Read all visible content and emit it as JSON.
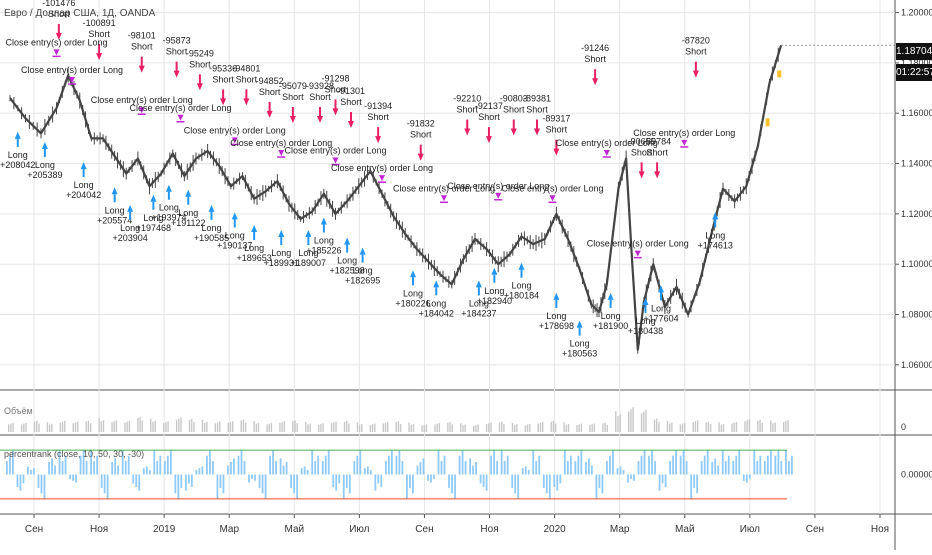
{
  "header": {
    "symbol": "Евро / Доллар США, 1Д, OANDA",
    "last_price": "1.18704",
    "countdown": "01:22:57"
  },
  "volume_pane": {
    "title": "Объём",
    "axis_label": "0"
  },
  "indicator_pane": {
    "title": "percentrank (close, 10, 50, 30, -30)",
    "axis_label": "0.00000",
    "upper_level": 30,
    "lower_level": -30,
    "colors": {
      "bars": "#90caf9",
      "upper": "#4caf50",
      "lower": "#f44336"
    }
  },
  "colors": {
    "candle": "#444444",
    "long_arrow": "#2196f3",
    "short_arrow": "#e91e63",
    "exit_marker": "#c026d3",
    "grid": "#e6e6e6",
    "volume": "#c8c8c8"
  },
  "chart_data": [
    {
      "type": "line",
      "title": "Евро / Доллар США, 1Д, OANDA",
      "x_ticks": [
        "Сен",
        "Ноя",
        "2019",
        "Мар",
        "Май",
        "Июл",
        "Сен",
        "Ноя",
        "2020",
        "Мар",
        "Май",
        "Июл",
        "Сен",
        "Ноя"
      ],
      "y_ticks": [
        "1.06000",
        "1.08000",
        "1.10000",
        "1.12000",
        "1.14000",
        "1.16000",
        "1.18000",
        "1.20000"
      ],
      "ylim": [
        1.05,
        1.205
      ],
      "xlim": [
        0,
        1
      ],
      "series": [
        {
          "values": [
            [
              0.0,
              1.166
            ],
            [
              0.02,
              1.158
            ],
            [
              0.04,
              1.152
            ],
            [
              0.06,
              1.162
            ],
            [
              0.075,
              1.175
            ],
            [
              0.09,
              1.165
            ],
            [
              0.105,
              1.15
            ],
            [
              0.12,
              1.15
            ],
            [
              0.135,
              1.143
            ],
            [
              0.15,
              1.136
            ],
            [
              0.165,
              1.142
            ],
            [
              0.18,
              1.131
            ],
            [
              0.195,
              1.136
            ],
            [
              0.21,
              1.144
            ],
            [
              0.225,
              1.135
            ],
            [
              0.24,
              1.142
            ],
            [
              0.255,
              1.145
            ],
            [
              0.27,
              1.139
            ],
            [
              0.285,
              1.131
            ],
            [
              0.3,
              1.135
            ],
            [
              0.315,
              1.126
            ],
            [
              0.33,
              1.129
            ],
            [
              0.345,
              1.133
            ],
            [
              0.36,
              1.124
            ],
            [
              0.375,
              1.118
            ],
            [
              0.39,
              1.121
            ],
            [
              0.405,
              1.128
            ],
            [
              0.42,
              1.12
            ],
            [
              0.435,
              1.125
            ],
            [
              0.45,
              1.131
            ],
            [
              0.465,
              1.137
            ],
            [
              0.48,
              1.128
            ],
            [
              0.495,
              1.119
            ],
            [
              0.51,
              1.112
            ],
            [
              0.525,
              1.106
            ],
            [
              0.54,
              1.101
            ],
            [
              0.555,
              1.096
            ],
            [
              0.57,
              1.092
            ],
            [
              0.585,
              1.102
            ],
            [
              0.6,
              1.11
            ],
            [
              0.615,
              1.106
            ],
            [
              0.63,
              1.1
            ],
            [
              0.645,
              1.104
            ],
            [
              0.66,
              1.111
            ],
            [
              0.675,
              1.108
            ],
            [
              0.69,
              1.11
            ],
            [
              0.705,
              1.12
            ],
            [
              0.72,
              1.11
            ],
            [
              0.735,
              1.098
            ],
            [
              0.75,
              1.084
            ],
            [
              0.76,
              1.081
            ],
            [
              0.77,
              1.092
            ],
            [
              0.785,
              1.13
            ],
            [
              0.795,
              1.142
            ],
            [
              0.803,
              1.1
            ],
            [
              0.81,
              1.066
            ],
            [
              0.818,
              1.085
            ],
            [
              0.83,
              1.1
            ],
            [
              0.845,
              1.083
            ],
            [
              0.86,
              1.091
            ],
            [
              0.875,
              1.08
            ],
            [
              0.89,
              1.093
            ],
            [
              0.905,
              1.112
            ],
            [
              0.92,
              1.13
            ],
            [
              0.935,
              1.125
            ],
            [
              0.95,
              1.131
            ],
            [
              0.965,
              1.147
            ],
            [
              0.98,
              1.172
            ],
            [
              0.995,
              1.187
            ]
          ]
        }
      ]
    },
    {
      "type": "bar",
      "title": "Объём",
      "values": [
        0.3,
        0.27,
        0.33,
        0.29,
        0.36,
        0.31,
        0.34,
        0.42,
        0.38,
        0.33,
        0.45,
        0.4,
        0.35,
        0.43,
        0.39,
        0.36,
        0.34,
        0.32,
        0.37,
        0.33,
        0.3,
        0.32,
        0.35,
        0.3,
        0.28,
        0.31,
        0.33,
        0.29,
        0.27,
        0.3,
        0.32,
        0.28,
        0.25,
        0.27,
        0.3,
        0.26,
        0.24,
        0.28,
        0.31,
        0.27,
        0.26,
        0.3,
        0.33,
        0.29,
        0.27,
        0.25,
        0.28,
        0.62,
        0.8,
        0.66,
        0.4,
        0.33,
        0.3,
        0.35,
        0.31,
        0.29,
        0.33,
        0.38,
        0.36,
        0.34,
        0.39
      ]
    },
    {
      "type": "bar",
      "title": "percentrank (close, 10, 50, 30, -30)",
      "hlines": [
        30,
        -30
      ],
      "values": [
        30,
        -20,
        10,
        -30,
        20,
        30,
        -10,
        30,
        30,
        -30,
        20,
        30,
        -20,
        10,
        30,
        30,
        -30,
        -20,
        10,
        30,
        -30,
        20,
        30,
        -10,
        -30,
        30,
        20,
        -30,
        10,
        30,
        30,
        -20,
        -30,
        30,
        10,
        -20,
        30,
        30,
        -30,
        20,
        -10,
        30,
        -30,
        30,
        20,
        -20,
        30,
        30,
        -30,
        10,
        30,
        -30,
        -20,
        30,
        30,
        20,
        -30,
        30,
        10,
        -10,
        30,
        30,
        -20,
        30,
        30,
        -30,
        30,
        20,
        30,
        30,
        -10,
        30,
        30,
        30,
        30
      ]
    }
  ],
  "trade_annotations": [
    {
      "side": "long",
      "label": "Long",
      "value": "+208042",
      "x": 0.01,
      "price": 1.149
    },
    {
      "side": "long",
      "label": "Long",
      "value": "+205389",
      "x": 0.045,
      "price": 1.145
    },
    {
      "side": "short",
      "label": "Short",
      "value": "-101476",
      "x": 0.063,
      "price": 1.178
    },
    {
      "side": "long",
      "label": "Long",
      "value": "+204042",
      "x": 0.095,
      "price": 1.137
    },
    {
      "side": "short",
      "label": "Short",
      "value": "-100891",
      "x": 0.115,
      "price": 1.17
    },
    {
      "side": "long",
      "label": "Long",
      "value": "+205574",
      "x": 0.135,
      "price": 1.127
    },
    {
      "side": "long",
      "label": "Long",
      "value": "+203904",
      "x": 0.155,
      "price": 1.12
    },
    {
      "side": "short",
      "label": "Short",
      "value": "-98101",
      "x": 0.17,
      "price": 1.165
    },
    {
      "side": "long",
      "label": "Long",
      "value": "+197468",
      "x": 0.185,
      "price": 1.124
    },
    {
      "side": "long",
      "label": "Long",
      "value": "+193974",
      "x": 0.205,
      "price": 1.128
    },
    {
      "side": "short",
      "label": "Short",
      "value": "-95873",
      "x": 0.215,
      "price": 1.163
    },
    {
      "side": "long",
      "label": "Long",
      "value": "+191122",
      "x": 0.23,
      "price": 1.126
    },
    {
      "side": "short",
      "label": "Short",
      "value": "-95249",
      "x": 0.245,
      "price": 1.158
    },
    {
      "side": "short",
      "label": "Short",
      "value": "-95336",
      "x": 0.275,
      "price": 1.152
    },
    {
      "side": "long",
      "label": "Long",
      "value": "+190585",
      "x": 0.26,
      "price": 1.12
    },
    {
      "side": "long",
      "label": "Long",
      "value": "+190137",
      "x": 0.29,
      "price": 1.117
    },
    {
      "side": "short",
      "label": "Short",
      "value": "-94801",
      "x": 0.305,
      "price": 1.152
    },
    {
      "side": "long",
      "label": "Long",
      "value": "+189653",
      "x": 0.315,
      "price": 1.112
    },
    {
      "side": "short",
      "label": "Short",
      "value": "-94852",
      "x": 0.335,
      "price": 1.147
    },
    {
      "side": "long",
      "label": "Long",
      "value": "+189931",
      "x": 0.35,
      "price": 1.11
    },
    {
      "side": "short",
      "label": "Short",
      "value": "-95079",
      "x": 0.365,
      "price": 1.145
    },
    {
      "side": "long",
      "label": "Long",
      "value": "+189007",
      "x": 0.385,
      "price": 1.11
    },
    {
      "side": "short",
      "label": "Short",
      "value": "-93928",
      "x": 0.4,
      "price": 1.145
    },
    {
      "side": "long",
      "label": "Long",
      "value": "+185226",
      "x": 0.405,
      "price": 1.115
    },
    {
      "side": "short",
      "label": "Short",
      "value": "-91298",
      "x": 0.42,
      "price": 1.148
    },
    {
      "side": "short",
      "label": "Short",
      "value": "-91301",
      "x": 0.44,
      "price": 1.143
    },
    {
      "side": "long",
      "label": "Long",
      "value": "+182598",
      "x": 0.435,
      "price": 1.107
    },
    {
      "side": "long",
      "label": "Long",
      "value": "+182695",
      "x": 0.455,
      "price": 1.103
    },
    {
      "side": "short",
      "label": "Short",
      "value": "-91394",
      "x": 0.475,
      "price": 1.137
    },
    {
      "side": "short",
      "label": "Short",
      "value": "-91832",
      "x": 0.53,
      "price": 1.13
    },
    {
      "side": "long",
      "label": "Long",
      "value": "+180226",
      "x": 0.52,
      "price": 1.094
    },
    {
      "side": "long",
      "label": "Long",
      "value": "+184042",
      "x": 0.55,
      "price": 1.09
    },
    {
      "side": "short",
      "label": "Short",
      "value": "-92210",
      "x": 0.59,
      "price": 1.14
    },
    {
      "side": "short",
      "label": "Short",
      "value": "-92137",
      "x": 0.618,
      "price": 1.137
    },
    {
      "side": "long",
      "label": "Long",
      "value": "+184237",
      "x": 0.605,
      "price": 1.09
    },
    {
      "side": "long",
      "label": "Long",
      "value": "+182940",
      "x": 0.625,
      "price": 1.095
    },
    {
      "side": "short",
      "label": "Short",
      "value": "-90803",
      "x": 0.65,
      "price": 1.14
    },
    {
      "side": "short",
      "label": "Short",
      "value": "-89381",
      "x": 0.68,
      "price": 1.14
    },
    {
      "side": "long",
      "label": "Long",
      "value": "+180184",
      "x": 0.66,
      "price": 1.097
    },
    {
      "side": "short",
      "label": "Short",
      "value": "-89317",
      "x": 0.705,
      "price": 1.132
    },
    {
      "side": "long",
      "label": "Long",
      "value": "+178698",
      "x": 0.705,
      "price": 1.085
    },
    {
      "side": "short",
      "label": "Short",
      "value": "-91246",
      "x": 0.755,
      "price": 1.16
    },
    {
      "side": "long",
      "label": "Long",
      "value": "+180563",
      "x": 0.735,
      "price": 1.074
    },
    {
      "side": "long",
      "label": "Long",
      "value": "+181900",
      "x": 0.775,
      "price": 1.085
    },
    {
      "side": "short",
      "label": "Short",
      "value": "-90655",
      "x": 0.815,
      "price": 1.123
    },
    {
      "side": "short",
      "label": "Short",
      "value": "-89784",
      "x": 0.835,
      "price": 1.123
    },
    {
      "side": "long",
      "label": "Long",
      "value": "+180438",
      "x": 0.82,
      "price": 1.083
    },
    {
      "side": "long",
      "label": "Long",
      "value": "+177604",
      "x": 0.84,
      "price": 1.088
    },
    {
      "side": "short",
      "label": "Short",
      "value": "-87820",
      "x": 0.885,
      "price": 1.163
    },
    {
      "side": "long",
      "label": "Long",
      "value": "+174613",
      "x": 0.91,
      "price": 1.117
    }
  ],
  "exit_labels": [
    {
      "text": "Close entry(s) order Long",
      "x": 0.06,
      "price": 1.183
    },
    {
      "text": "Close entry(s) order Long",
      "x": 0.08,
      "price": 1.172
    },
    {
      "text": "Close entry(s) order Long",
      "x": 0.17,
      "price": 1.16
    },
    {
      "text": "Close entry(s) order Long",
      "x": 0.22,
      "price": 1.157
    },
    {
      "text": "Close entry(s) order Long",
      "x": 0.29,
      "price": 1.148
    },
    {
      "text": "Close entry(s) order Long",
      "x": 0.35,
      "price": 1.143
    },
    {
      "text": "Close entry(s) order Long",
      "x": 0.42,
      "price": 1.14
    },
    {
      "text": "Close entry(s) order Long",
      "x": 0.48,
      "price": 1.133
    },
    {
      "text": "Close entry(s) order Long",
      "x": 0.56,
      "price": 1.125
    },
    {
      "text": "Close entry(s) order Long",
      "x": 0.63,
      "price": 1.126
    },
    {
      "text": "Close entry(s) order Long",
      "x": 0.7,
      "price": 1.125
    },
    {
      "text": "Close entry(s) order Long",
      "x": 0.77,
      "price": 1.143
    },
    {
      "text": "Close entry(s) order Long",
      "x": 0.81,
      "price": 1.103
    },
    {
      "text": "Close entry(s) order Long",
      "x": 0.87,
      "price": 1.147
    }
  ]
}
